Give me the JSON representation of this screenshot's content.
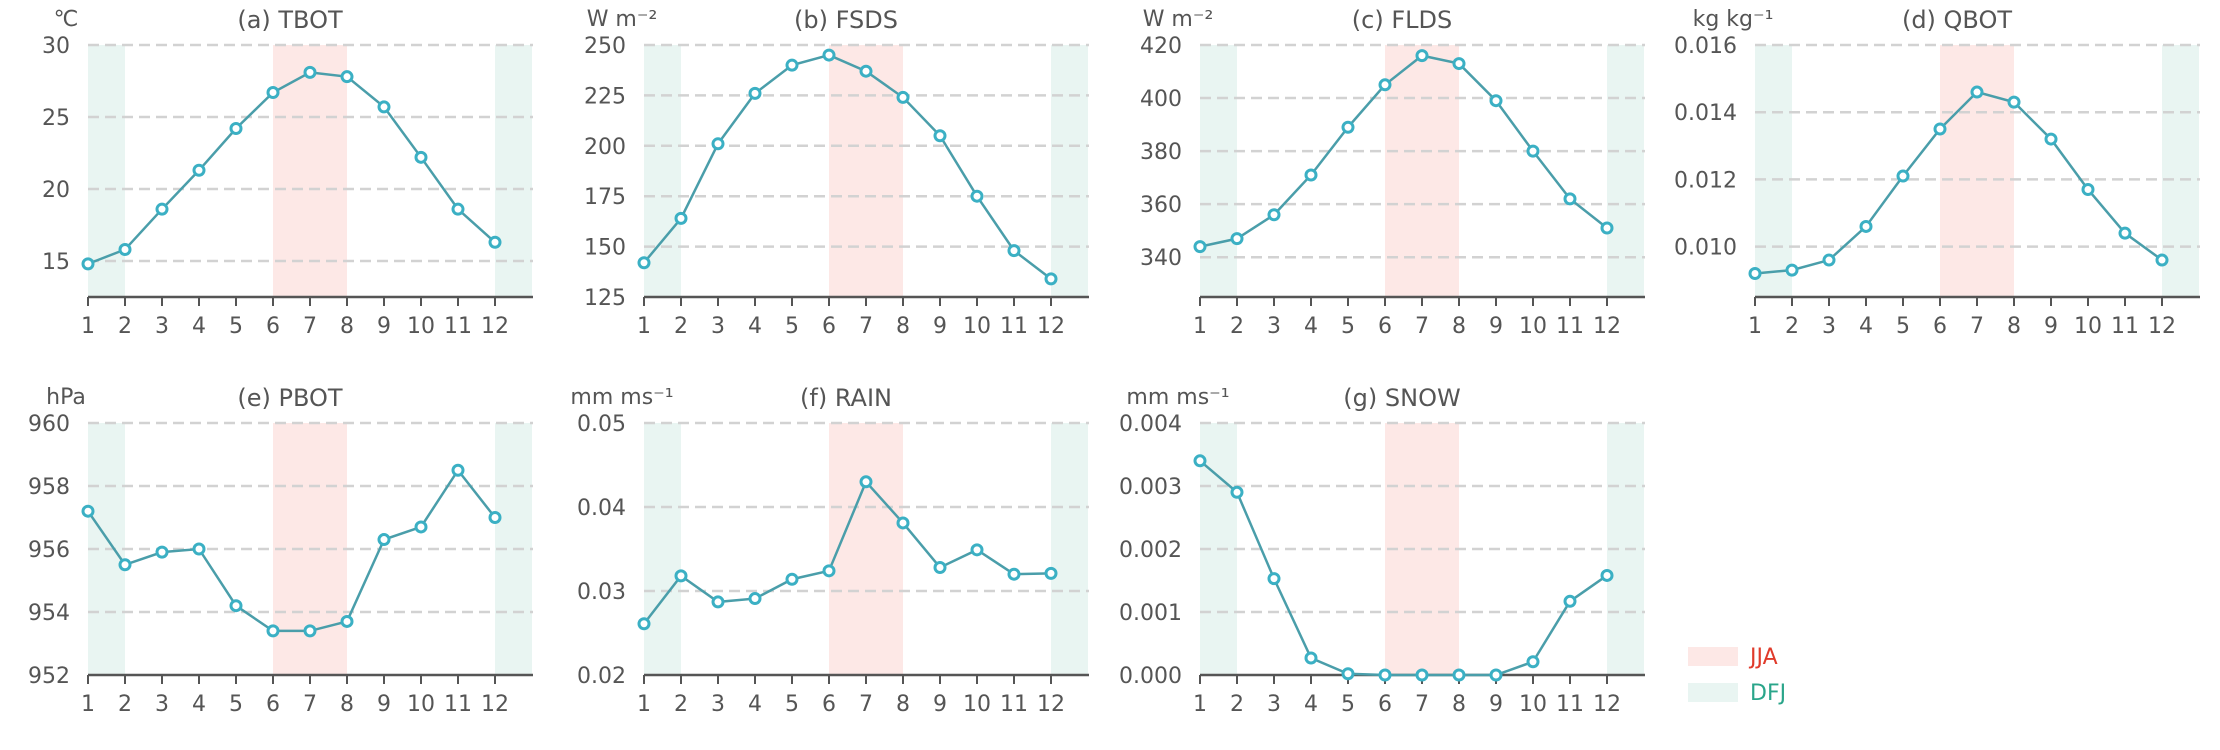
{
  "chart_data": [
    {
      "type": "line",
      "title": "(a) TBOT",
      "ylabel": "℃",
      "x": [
        1,
        2,
        3,
        4,
        5,
        6,
        7,
        8,
        9,
        10,
        11,
        12
      ],
      "values": [
        14.8,
        15.8,
        18.6,
        21.3,
        24.2,
        26.7,
        28.1,
        27.8,
        25.7,
        22.2,
        18.6,
        16.3
      ],
      "ylim": [
        12.5,
        30
      ],
      "yticks": [
        15,
        20,
        25,
        30
      ],
      "ytick_labels": [
        "15",
        "20",
        "25",
        "30"
      ]
    },
    {
      "type": "line",
      "title": "(b) FSDS",
      "ylabel": "W m⁻²",
      "x": [
        1,
        2,
        3,
        4,
        5,
        6,
        7,
        8,
        9,
        10,
        11,
        12
      ],
      "values": [
        142,
        164,
        201,
        226,
        240,
        245,
        237,
        224,
        205,
        175,
        148,
        134
      ],
      "ylim": [
        125,
        250
      ],
      "yticks": [
        125,
        150,
        175,
        200,
        225,
        250
      ],
      "ytick_labels": [
        "125",
        "150",
        "175",
        "200",
        "225",
        "250"
      ]
    },
    {
      "type": "line",
      "title": "(c) FLDS",
      "ylabel": "W m⁻²",
      "x": [
        1,
        2,
        3,
        4,
        5,
        6,
        7,
        8,
        9,
        10,
        11,
        12
      ],
      "values": [
        344,
        347,
        356,
        371,
        389,
        405,
        416,
        413,
        399,
        380,
        362,
        351
      ],
      "ylim": [
        325,
        420
      ],
      "yticks": [
        340,
        360,
        380,
        400,
        420
      ],
      "ytick_labels": [
        "340",
        "360",
        "380",
        "400",
        "420"
      ]
    },
    {
      "type": "line",
      "title": "(d) QBOT",
      "ylabel": "kg kg⁻¹",
      "x": [
        1,
        2,
        3,
        4,
        5,
        6,
        7,
        8,
        9,
        10,
        11,
        12
      ],
      "values": [
        0.0092,
        0.0093,
        0.0096,
        0.0106,
        0.0121,
        0.0135,
        0.0146,
        0.0143,
        0.0132,
        0.0117,
        0.0104,
        0.0096
      ],
      "ylim": [
        0.0085,
        0.016
      ],
      "yticks": [
        0.01,
        0.012,
        0.014,
        0.016
      ],
      "ytick_labels": [
        "0.010",
        "0.012",
        "0.014",
        "0.016"
      ]
    },
    {
      "type": "line",
      "title": "(e) PBOT",
      "ylabel": "hPa",
      "x": [
        1,
        2,
        3,
        4,
        5,
        6,
        7,
        8,
        9,
        10,
        11,
        12
      ],
      "values": [
        957.2,
        955.5,
        955.9,
        956.0,
        954.2,
        953.4,
        953.4,
        953.7,
        956.3,
        956.7,
        958.5,
        957.0
      ],
      "ylim": [
        952,
        960
      ],
      "yticks": [
        952,
        954,
        956,
        958,
        960
      ],
      "ytick_labels": [
        "952",
        "954",
        "956",
        "958",
        "960"
      ]
    },
    {
      "type": "line",
      "title": "(f) RAIN",
      "ylabel": "mm ms⁻¹",
      "x": [
        1,
        2,
        3,
        4,
        5,
        6,
        7,
        8,
        9,
        10,
        11,
        12
      ],
      "values": [
        0.0261,
        0.0318,
        0.0287,
        0.0291,
        0.0314,
        0.0324,
        0.043,
        0.0381,
        0.0328,
        0.0349,
        0.032,
        0.0321
      ],
      "ylim": [
        0.02,
        0.05
      ],
      "yticks": [
        0.02,
        0.03,
        0.04,
        0.05
      ],
      "ytick_labels": [
        "0.02",
        "0.03",
        "0.04",
        "0.05"
      ]
    },
    {
      "type": "line",
      "title": "(g) SNOW",
      "ylabel": "mm ms⁻¹",
      "x": [
        1,
        2,
        3,
        4,
        5,
        6,
        7,
        8,
        9,
        10,
        11,
        12
      ],
      "values": [
        0.0034,
        0.0029,
        0.00153,
        0.00027,
        2e-05,
        0.0,
        0.0,
        0.0,
        0.0,
        0.00021,
        0.00117,
        0.00158
      ],
      "ylim": [
        0,
        0.004
      ],
      "yticks": [
        0,
        0.001,
        0.002,
        0.003,
        0.004
      ],
      "ytick_labels": [
        "0.000",
        "0.001",
        "0.002",
        "0.003",
        "0.004"
      ]
    }
  ],
  "x_tick_labels": [
    "1",
    "2",
    "3",
    "4",
    "5",
    "6",
    "7",
    "8",
    "9",
    "10",
    "11",
    "12"
  ],
  "legend": [
    {
      "label": "JJA",
      "fill": "#fde8e6",
      "text_color": "#e03b2b",
      "span": [
        6,
        8
      ]
    },
    {
      "label": "DFJ",
      "fill": "#e9f5f2",
      "text_color": "#2aa58a",
      "span": [
        1,
        2,
        12
      ]
    }
  ],
  "colors": {
    "line": "#4a9eaa",
    "marker": "#3bb0c4",
    "grid": "#d2d2d2",
    "axis": "#555555",
    "text": "#555555"
  }
}
